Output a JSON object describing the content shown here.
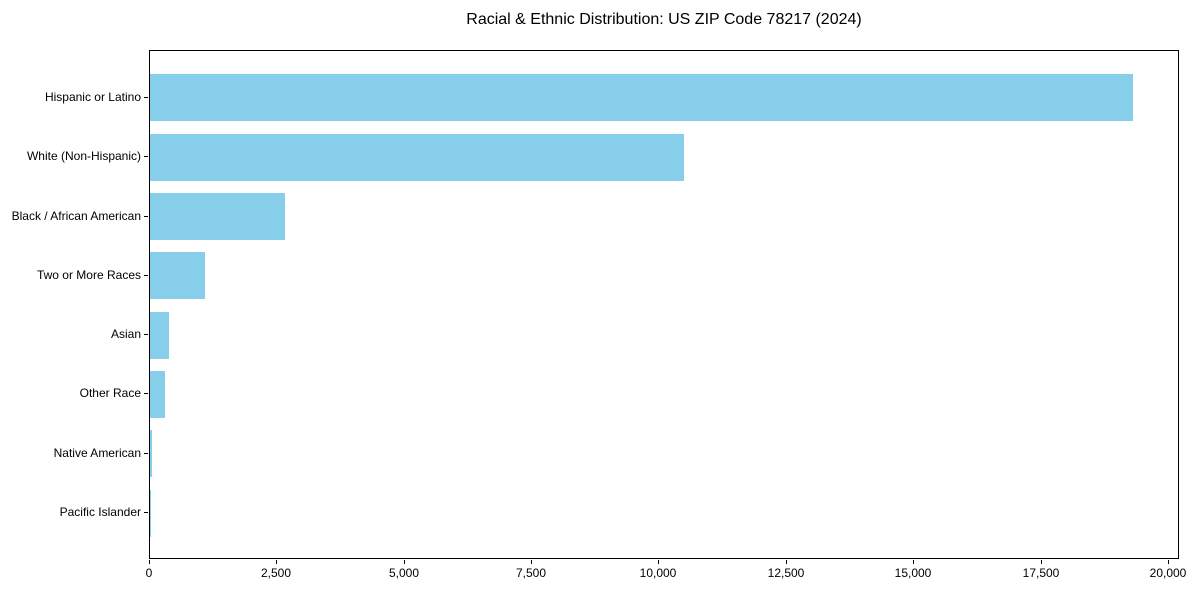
{
  "title": "Racial & Ethnic Distribution: US ZIP Code 78217 (2024)",
  "colors": {
    "bar": "#87CEEB",
    "axis": "#000000",
    "text": "#000000",
    "background": "#FFFFFF"
  },
  "chart_data": {
    "type": "bar",
    "orientation": "horizontal",
    "title": "Racial & Ethnic Distribution: US ZIP Code 78217 (2024)",
    "categories": [
      "Hispanic or Latino",
      "White (Non-Hispanic)",
      "Black / African American",
      "Two or More Races",
      "Asian",
      "Other Race",
      "Native American",
      "Pacific Islander"
    ],
    "values": [
      19290,
      10480,
      2650,
      1080,
      370,
      290,
      45,
      15
    ],
    "xlabel": "",
    "ylabel": "",
    "xlim": [
      0,
      20216
    ],
    "x_ticks": [
      0,
      2500,
      5000,
      7500,
      10000,
      12500,
      15000,
      17500,
      20000
    ],
    "x_tick_labels": [
      "0",
      "2,500",
      "5,000",
      "7,500",
      "10,000",
      "12,500",
      "15,000",
      "17,500",
      "20,000"
    ],
    "bar_color": "#87CEEB",
    "grid": false,
    "legend": null
  }
}
